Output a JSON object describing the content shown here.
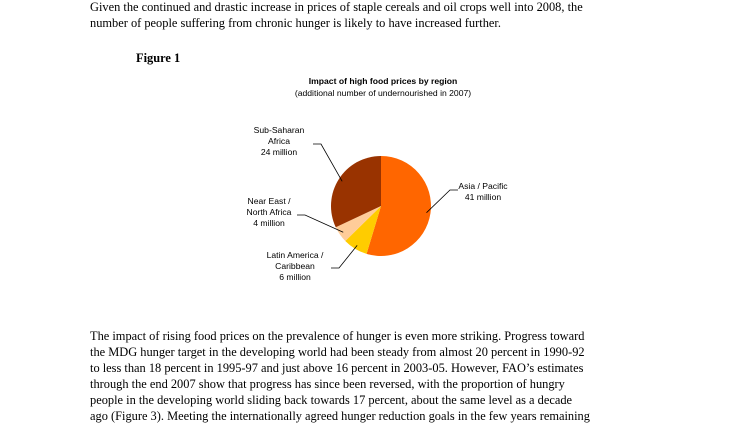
{
  "paragraph_top": {
    "lines": [
      "Given the continued and drastic increase in prices of staple cereals and oil crops well into 2008, the",
      "number of people suffering from chronic hunger is likely to have increased further."
    ]
  },
  "figure": {
    "label": "Figure 1"
  },
  "chart_data": {
    "type": "pie",
    "title": "Impact of high food prices by region",
    "subtitle": "(additional number of undernourished in 2007)",
    "unit": "million",
    "slices": [
      {
        "label_lines": [
          "Asia / Pacific",
          "41 million"
        ],
        "value": 41,
        "color": "#ff6600"
      },
      {
        "label_lines": [
          "Latin America /",
          "Caribbean",
          "6 million"
        ],
        "value": 6,
        "color": "#ffcc00"
      },
      {
        "label_lines": [
          "Near East /",
          "North Africa",
          "4 million"
        ],
        "value": 4,
        "color": "#ffcc99"
      },
      {
        "label_lines": [
          "Sub-Saharan",
          "Africa",
          "24 million"
        ],
        "value": 24,
        "color": "#993300"
      }
    ]
  },
  "paragraph_bottom": {
    "lines": [
      "The impact of rising food prices on the prevalence of hunger is even more striking. Progress toward",
      "the MDG hunger target in the developing world had been steady from almost 20 percent in 1990-92",
      "to less than 18 percent in 1995-97 and just above 16 percent in 2003-05. However, FAO’s estimates",
      "through the end 2007 show that progress has since been reversed, with the proportion of hungry",
      "people in the developing world sliding back towards 17 percent, about the same level as a decade",
      "ago (Figure 3). Meeting the internationally agreed hunger reduction goals in the few years remaining"
    ]
  }
}
